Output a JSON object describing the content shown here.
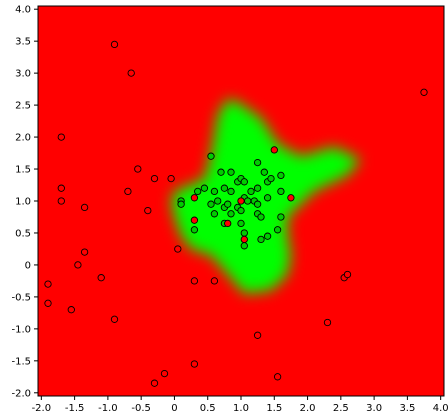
{
  "chart_data": {
    "type": "scatter",
    "title": "",
    "xlabel": "",
    "ylabel": "",
    "xlim": [
      -2.05,
      4.05
    ],
    "ylim": [
      -2.05,
      4.05
    ],
    "xticks": [
      "-2.0",
      "-1.5",
      "-1.0",
      "-0.5",
      "0",
      "0.5",
      "1.0",
      "1.5",
      "2.0",
      "2.5",
      "3.0",
      "3.5",
      "4.0"
    ],
    "yticks": [
      "4.0",
      "3.5",
      "3.0",
      "2.5",
      "2.0",
      "1.5",
      "1.0",
      "0.5",
      "0",
      "-0.5",
      "-1.0",
      "-1.5",
      "-2.0"
    ],
    "grid": false,
    "background_color": "#ff0000",
    "region_color": "#00ff00",
    "region_outline": [
      [
        0.0,
        1.15
      ],
      [
        0.45,
        1.35
      ],
      [
        0.55,
        1.75
      ],
      [
        0.65,
        2.35
      ],
      [
        0.8,
        2.6
      ],
      [
        0.95,
        2.55
      ],
      [
        1.3,
        2.3
      ],
      [
        1.55,
        1.9
      ],
      [
        1.9,
        1.7
      ],
      [
        2.4,
        1.85
      ],
      [
        2.8,
        1.65
      ],
      [
        2.6,
        1.4
      ],
      [
        2.1,
        1.15
      ],
      [
        1.9,
        0.95
      ],
      [
        1.7,
        0.75
      ],
      [
        1.7,
        0.45
      ],
      [
        1.75,
        0.15
      ],
      [
        1.7,
        -0.15
      ],
      [
        1.45,
        -0.4
      ],
      [
        1.05,
        -0.45
      ],
      [
        0.8,
        -0.15
      ],
      [
        0.55,
        0.15
      ],
      [
        0.25,
        0.25
      ],
      [
        0.1,
        0.45
      ],
      [
        0.0,
        0.75
      ],
      [
        -0.05,
        1.0
      ]
    ],
    "series": [
      {
        "color": "#00cc00",
        "points": [
          [
            0.55,
            1.7
          ],
          [
            0.7,
            1.45
          ],
          [
            0.85,
            1.45
          ],
          [
            1.25,
            1.6
          ],
          [
            1.35,
            1.45
          ],
          [
            1.6,
            1.4
          ],
          [
            0.35,
            1.15
          ],
          [
            0.45,
            1.2
          ],
          [
            0.6,
            1.15
          ],
          [
            0.75,
            1.2
          ],
          [
            0.85,
            1.15
          ],
          [
            0.95,
            1.3
          ],
          [
            1.0,
            1.35
          ],
          [
            1.05,
            1.3
          ],
          [
            1.15,
            1.15
          ],
          [
            1.25,
            1.2
          ],
          [
            1.4,
            1.3
          ],
          [
            1.45,
            1.35
          ],
          [
            1.6,
            1.15
          ],
          [
            0.1,
            1.0
          ],
          [
            0.1,
            0.95
          ],
          [
            0.55,
            0.95
          ],
          [
            0.65,
            1.0
          ],
          [
            0.75,
            0.9
          ],
          [
            0.8,
            0.95
          ],
          [
            0.95,
            0.9
          ],
          [
            1.05,
            1.05
          ],
          [
            1.1,
            1.0
          ],
          [
            1.2,
            1.0
          ],
          [
            1.25,
            0.95
          ],
          [
            1.4,
            1.05
          ],
          [
            0.6,
            0.8
          ],
          [
            0.85,
            0.8
          ],
          [
            1.0,
            0.85
          ],
          [
            1.25,
            0.8
          ],
          [
            1.3,
            0.75
          ],
          [
            1.6,
            0.75
          ],
          [
            0.3,
            0.55
          ],
          [
            0.75,
            0.65
          ],
          [
            1.0,
            0.65
          ],
          [
            1.05,
            0.5
          ],
          [
            1.3,
            0.4
          ],
          [
            1.4,
            0.45
          ],
          [
            1.55,
            0.55
          ],
          [
            1.05,
            0.3
          ]
        ]
      },
      {
        "color": "#ff0000",
        "points": [
          [
            -1.7,
            2.0
          ],
          [
            -1.7,
            1.2
          ],
          [
            -1.7,
            1.0
          ],
          [
            -1.35,
            0.9
          ],
          [
            -1.9,
            -0.3
          ],
          [
            -1.9,
            -0.6
          ],
          [
            -1.55,
            -0.7
          ],
          [
            -1.45,
            0.0
          ],
          [
            -1.35,
            0.2
          ],
          [
            -1.1,
            -0.2
          ],
          [
            -0.9,
            3.45
          ],
          [
            -0.65,
            3.0
          ],
          [
            -0.7,
            1.15
          ],
          [
            -0.55,
            1.5
          ],
          [
            -0.4,
            0.85
          ],
          [
            -0.3,
            1.35
          ],
          [
            -0.05,
            1.35
          ],
          [
            0.05,
            0.25
          ],
          [
            0.3,
            -0.25
          ],
          [
            0.6,
            -0.25
          ],
          [
            -0.9,
            -0.85
          ],
          [
            0.3,
            -1.55
          ],
          [
            -0.15,
            -1.7
          ],
          [
            -0.3,
            -1.85
          ],
          [
            1.25,
            -1.1
          ],
          [
            1.55,
            -1.75
          ],
          [
            2.3,
            -0.9
          ],
          [
            2.55,
            -0.2
          ],
          [
            2.6,
            -0.15
          ],
          [
            3.75,
            2.7
          ],
          [
            1.5,
            1.8
          ],
          [
            1.75,
            1.05
          ],
          [
            0.3,
            1.05
          ],
          [
            1.0,
            1.0
          ],
          [
            0.3,
            0.7
          ],
          [
            0.8,
            0.65
          ],
          [
            1.05,
            0.4
          ]
        ]
      }
    ]
  }
}
